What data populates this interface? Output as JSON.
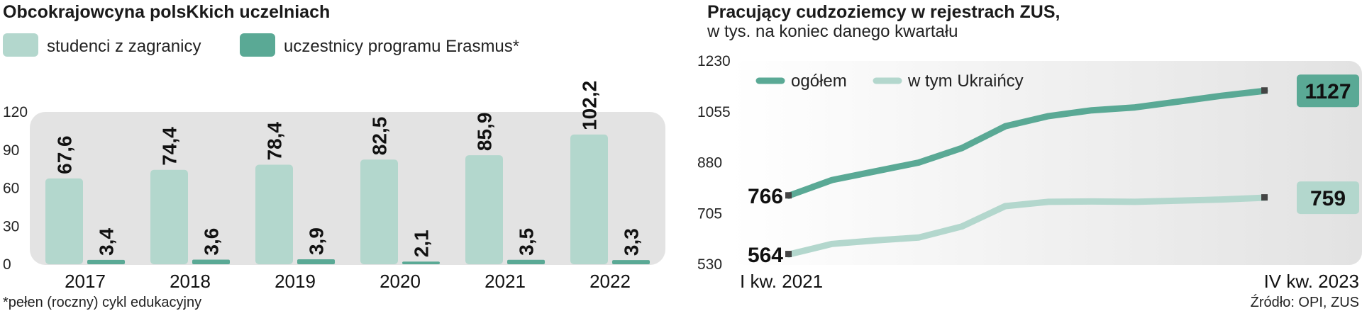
{
  "colors": {
    "students": "#b3d7cd",
    "erasmus": "#5aa995",
    "total_line": "#5aa995",
    "ukraine_line": "#b3d7cd",
    "panel_bg": "#e3e3e3",
    "badge_dark": "#5aa995",
    "badge_light": "#b3d7cd"
  },
  "chart_data": [
    {
      "type": "bar",
      "title": "Obcokrajowcyna polsKkich uczelniach",
      "categories": [
        "2017",
        "2018",
        "2019",
        "2020",
        "2021",
        "2022"
      ],
      "series": [
        {
          "name": "studenci z zagranicy",
          "values": [
            67.6,
            74.4,
            78.4,
            82.5,
            85.9,
            102.2
          ],
          "labels": [
            "67,6",
            "74,4",
            "78,4",
            "82,5",
            "85,9",
            "102,2"
          ]
        },
        {
          "name": "uczestnicy programu Erasmus*",
          "values": [
            3.4,
            3.6,
            3.9,
            2.1,
            3.5,
            3.3
          ],
          "labels": [
            "3,4",
            "3,6",
            "3,9",
            "2,1",
            "3,5",
            "3,3"
          ]
        }
      ],
      "yticks": [
        "120",
        "90",
        "60",
        "30",
        "0"
      ],
      "ylim": [
        0,
        120
      ],
      "grid": false,
      "legend": "top-left",
      "footnote": "*pełen (roczny) cykl edukacyjny"
    },
    {
      "type": "line",
      "title": "Pracujący cudzoziemcy w rejestrach ZUS,",
      "subtitle": "w tys. na koniec danego kwartału",
      "x_start_label": "I  kw. 2021",
      "x_end_label": "IV kw. 2023",
      "yticks": [
        "1230",
        "1055",
        "880",
        "705",
        "530"
      ],
      "ylim": [
        530,
        1230
      ],
      "series": [
        {
          "name": "ogółem",
          "values": [
            766,
            820,
            850,
            880,
            930,
            1005,
            1040,
            1060,
            1070,
            1090,
            1110,
            1127
          ]
        },
        {
          "name": "w tym Ukraińcy",
          "values": [
            564,
            600,
            612,
            622,
            660,
            730,
            745,
            746,
            745,
            749,
            753,
            759
          ]
        }
      ],
      "start_labels": [
        "766",
        "564"
      ],
      "end_labels": [
        "1127",
        "759"
      ],
      "legend": "top-left",
      "source": "Źródło: OPI, ZUS"
    }
  ]
}
